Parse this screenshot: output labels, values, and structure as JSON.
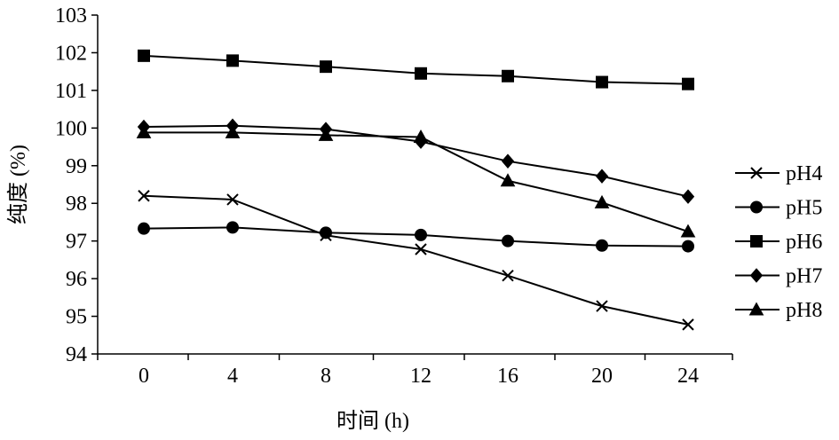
{
  "chart_data": {
    "type": "line",
    "xlabel": "时间 (h)",
    "ylabel": "纯度 (%)",
    "x": [
      0,
      4,
      8,
      12,
      16,
      20,
      24
    ],
    "ylim": [
      94,
      103
    ],
    "yticks": [
      94,
      95,
      96,
      97,
      98,
      99,
      100,
      101,
      102,
      103
    ],
    "grid": false,
    "legend_position": "right",
    "series": [
      {
        "name": "pH4",
        "marker": "x",
        "values": [
          98.2,
          98.1,
          97.15,
          96.78,
          96.08,
          95.27,
          94.78
        ]
      },
      {
        "name": "pH5",
        "marker": "circle",
        "values": [
          97.33,
          97.36,
          97.22,
          97.16,
          97.0,
          96.88,
          96.86
        ]
      },
      {
        "name": "pH6",
        "marker": "square",
        "values": [
          101.92,
          101.79,
          101.63,
          101.45,
          101.38,
          101.22,
          101.17
        ]
      },
      {
        "name": "pH7",
        "marker": "diamond",
        "values": [
          100.03,
          100.06,
          99.97,
          99.64,
          99.12,
          98.72,
          98.18
        ]
      },
      {
        "name": "pH8",
        "marker": "triangle",
        "values": [
          99.88,
          99.88,
          99.81,
          99.76,
          98.6,
          98.02,
          97.25
        ]
      }
    ]
  }
}
